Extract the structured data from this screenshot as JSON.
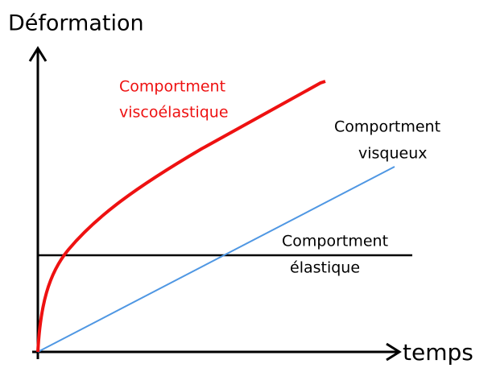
{
  "axes": {
    "y_label": "Déformation",
    "x_label": "temps"
  },
  "curves": [
    {
      "label_lines": [
        "Comportment",
        "viscoélastique"
      ]
    },
    {
      "label_lines": [
        "Comportment",
        "visqueux"
      ]
    },
    {
      "label_lines": [
        "Comportment",
        "élastique"
      ]
    }
  ]
}
